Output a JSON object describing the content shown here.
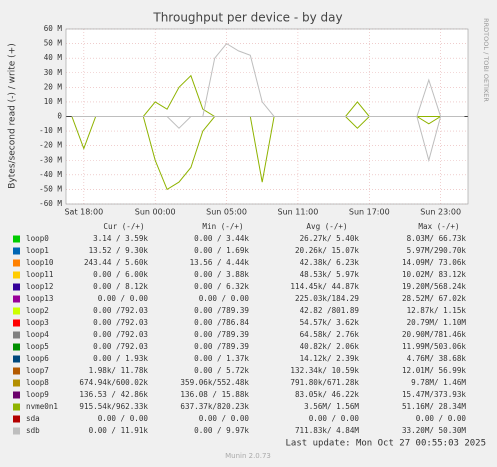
{
  "chart_data": {
    "type": "line",
    "title": "Throughput per device - by day",
    "y_label": "Bytes/second read (-) / write (+)",
    "side_label": "RRDTOOL / TOBI OETIKER",
    "footer": "Last update: Mon Oct 27 00:55:03 2025",
    "version": "Munin 2.0.73",
    "grid": true,
    "xlim": [
      -1.5,
      32.3
    ],
    "ylim": [
      -60000000,
      60000000
    ],
    "xticks": [
      {
        "value": 0,
        "label": "Sat 18:00"
      },
      {
        "value": 6,
        "label": "Sun 00:00"
      },
      {
        "value": 12,
        "label": "Sun 05:00"
      },
      {
        "value": 18,
        "label": "Sun 11:00"
      },
      {
        "value": 24,
        "label": "Sun 17:00"
      },
      {
        "value": 30,
        "label": "Sun 23:00"
      }
    ],
    "yticks": [
      {
        "value": 60000000,
        "label": "60 M"
      },
      {
        "value": 50000000,
        "label": "50 M"
      },
      {
        "value": 40000000,
        "label": "40 M"
      },
      {
        "value": 30000000,
        "label": "30 M"
      },
      {
        "value": 20000000,
        "label": "20 M"
      },
      {
        "value": 10000000,
        "label": "10 M"
      },
      0,
      {
        "value": -10000000,
        "label": "-10 M"
      },
      {
        "value": -20000000,
        "label": "-20 M"
      },
      {
        "value": -30000000,
        "label": "-30 M"
      },
      {
        "value": -40000000,
        "label": "-40 M"
      },
      {
        "value": -50000000,
        "label": "-50 M"
      },
      {
        "value": -60000000,
        "label": "-60 M"
      }
    ],
    "columns": [
      "Cur (-/+)",
      "Min (-/+)",
      "Avg (-/+)",
      "Max (-/+)"
    ],
    "x": [
      -1,
      0,
      1,
      2,
      3,
      4,
      5,
      6,
      7,
      8,
      9,
      10,
      11,
      12,
      13,
      14,
      15,
      16,
      17,
      18,
      19,
      20,
      21,
      22,
      23,
      24,
      25,
      26,
      27,
      28,
      29,
      30,
      31,
      32
    ],
    "series": [
      {
        "name": "loop0",
        "color": "#00cc00",
        "stats": [
          "3.14 /  3.59k",
          "0.00 /  3.44k",
          "26.27k/  5.40k",
          "8.03M/ 66.73k"
        ]
      },
      {
        "name": "loop1",
        "color": "#0066b3",
        "stats": [
          "13.52 /  9.30k",
          "0.00 /  1.69k",
          "20.26k/ 15.07k",
          "5.97M/290.70k"
        ]
      },
      {
        "name": "loop10",
        "color": "#ff8000",
        "stats": [
          "243.44 /  5.60k",
          "13.56 /  4.44k",
          "42.38k/  6.23k",
          "14.09M/ 73.06k"
        ]
      },
      {
        "name": "loop11",
        "color": "#ffcc00",
        "stats": [
          "0.00 /  6.00k",
          "0.00 /  3.88k",
          "48.53k/  5.97k",
          "10.02M/ 83.12k"
        ]
      },
      {
        "name": "loop12",
        "color": "#330099",
        "stats": [
          "0.00 /  8.12k",
          "0.00 /  6.32k",
          "114.45k/ 44.87k",
          "19.20M/568.24k"
        ]
      },
      {
        "name": "loop13",
        "color": "#990099",
        "stats": [
          "0.00 /  0.00",
          "0.00 /  0.00",
          "225.03k/184.29",
          "28.52M/ 67.02k"
        ]
      },
      {
        "name": "loop2",
        "color": "#ccff00",
        "stats": [
          "0.00 /792.03",
          "0.00 /789.39",
          "42.82 /801.89",
          "12.87k/  1.15k"
        ]
      },
      {
        "name": "loop3",
        "color": "#ff0000",
        "stats": [
          "0.00 /792.03",
          "0.00 /786.84",
          "54.57k/  3.62k",
          "20.79M/  1.10M"
        ]
      },
      {
        "name": "loop4",
        "color": "#808080",
        "stats": [
          "0.00 /792.03",
          "0.00 /789.39",
          "64.58k/  2.76k",
          "20.90M/781.46k"
        ]
      },
      {
        "name": "loop5",
        "color": "#008f00",
        "stats": [
          "0.00 /792.03",
          "0.00 /789.39",
          "40.82k/  2.06k",
          "11.99M/503.06k"
        ]
      },
      {
        "name": "loop6",
        "color": "#00487d",
        "stats": [
          "0.00 /  1.93k",
          "0.00 /  1.37k",
          "14.12k/  2.39k",
          "4.76M/ 38.68k"
        ]
      },
      {
        "name": "loop7",
        "color": "#b35a00",
        "stats": [
          "1.98k/ 11.78k",
          "0.00 /  5.72k",
          "132.34k/ 10.59k",
          "12.01M/ 56.99k"
        ]
      },
      {
        "name": "loop8",
        "color": "#b38f00",
        "stats": [
          "674.94k/600.02k",
          "359.06k/552.48k",
          "791.80k/671.28k",
          "9.78M/  1.46M"
        ]
      },
      {
        "name": "loop9",
        "color": "#6b006b",
        "stats": [
          "136.53 / 42.86k",
          "136.08 / 15.88k",
          "83.05k/ 46.22k",
          "15.47M/373.93k"
        ]
      },
      {
        "name": "nvme0n1",
        "color": "#8fb300",
        "stats": [
          "915.54k/962.33k",
          "637.37k/820.23k",
          "3.56M/  1.56M",
          "51.16M/ 28.34M"
        ],
        "values": [
          0,
          0,
          0,
          0,
          0,
          0,
          0,
          10000000,
          5000000,
          20000000,
          28000000,
          5000000,
          0,
          0,
          0,
          0,
          0,
          0,
          0,
          0,
          0,
          0,
          0,
          0,
          10000000,
          0,
          0,
          0,
          0,
          0,
          0,
          0,
          0,
          0
        ],
        "read_values": [
          0,
          -22000000,
          0,
          0,
          0,
          0,
          0,
          -30000000,
          -50000000,
          -45000000,
          -35000000,
          -10000000,
          0,
          0,
          0,
          0,
          -45000000,
          0,
          0,
          0,
          0,
          0,
          0,
          0,
          -8000000,
          0,
          0,
          0,
          0,
          0,
          -5000000,
          0,
          0,
          0
        ]
      },
      {
        "name": "sda",
        "color": "#b30000",
        "stats": [
          "0.00 /  0.00",
          "0.00 /  0.00",
          "0.00 /  0.00",
          "0.00 /  0.00"
        ]
      },
      {
        "name": "sdb",
        "color": "#bebebe",
        "stats": [
          "0.00 / 11.91k",
          "0.00 /  9.97k",
          "711.83k/  4.84M",
          "33.20M/ 50.30M"
        ],
        "values": [
          0,
          0,
          0,
          0,
          0,
          0,
          0,
          0,
          0,
          0,
          0,
          0,
          40000000,
          50000000,
          45000000,
          42000000,
          10000000,
          0,
          0,
          0,
          0,
          0,
          0,
          0,
          0,
          0,
          0,
          0,
          0,
          0,
          25000000,
          0,
          0,
          0
        ],
        "read_values": [
          0,
          0,
          0,
          0,
          0,
          0,
          0,
          0,
          0,
          -8000000,
          0,
          0,
          0,
          0,
          0,
          0,
          0,
          0,
          0,
          0,
          0,
          0,
          0,
          0,
          0,
          0,
          0,
          0,
          0,
          0,
          -30000000,
          0,
          0,
          0
        ]
      }
    ]
  }
}
